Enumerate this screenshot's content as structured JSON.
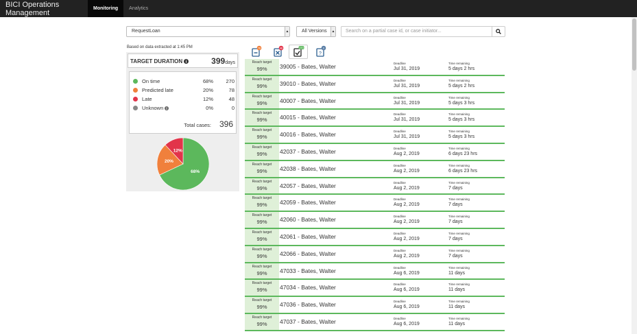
{
  "navbar": {
    "brand": "BICI Operations Management",
    "tabs": [
      {
        "label": "Monitoring",
        "active": true
      },
      {
        "label": "Analytics",
        "active": false
      }
    ]
  },
  "filters": {
    "process": "RequestLoan",
    "version": "All Versions",
    "search_placeholder": "Search on a partial case id, or case initiator..."
  },
  "extracted_note": "Based on data extracted at 1:45 PM",
  "target_duration": {
    "label": "TARGET DURATION",
    "value": "399",
    "unit": "days"
  },
  "stats": [
    {
      "name": "On time",
      "percent": "68%",
      "count": "270",
      "color": "#5cb85c"
    },
    {
      "name": "Predicted late",
      "percent": "20%",
      "count": "78",
      "color": "#f0803c"
    },
    {
      "name": "Late",
      "percent": "12%",
      "count": "48",
      "color": "#e2344a"
    },
    {
      "name": "Unknown",
      "percent": "0%",
      "count": "0",
      "color": "#888888"
    }
  ],
  "total_label": "Total cases:",
  "total_value": "396",
  "chart_data": {
    "type": "pie",
    "categories": [
      "On time",
      "Predicted late",
      "Late"
    ],
    "values": [
      68,
      20,
      12
    ],
    "labels": [
      "68%",
      "20%",
      "12%"
    ],
    "colors": [
      "#5cb85c",
      "#f0803c",
      "#e2344a"
    ]
  },
  "filter_icons": [
    {
      "name": "predicted-late-filter-icon",
      "badge": "78",
      "badge_color": "#f0803c"
    },
    {
      "name": "late-filter-icon",
      "badge": "48",
      "badge_color": "#e2344a"
    },
    {
      "name": "on-time-filter-icon",
      "badge": "270",
      "badge_color": "#5cb85c"
    },
    {
      "name": "unknown-filter-icon",
      "badge": "0",
      "badge_color": "#5b7fa6"
    }
  ],
  "list_labels": {
    "reach": "Reach target",
    "deadline": "Deadline",
    "remaining": "Time remaining"
  },
  "cases": [
    {
      "reach": "99%",
      "title": "39005 - Bates, Walter",
      "deadline": "Jul 31, 2019",
      "remaining": "5 days 2 hrs"
    },
    {
      "reach": "99%",
      "title": "39010 - Bates, Walter",
      "deadline": "Jul 31, 2019",
      "remaining": "5 days 2 hrs"
    },
    {
      "reach": "99%",
      "title": "40007 - Bates, Walter",
      "deadline": "Jul 31, 2019",
      "remaining": "5 days 3 hrs"
    },
    {
      "reach": "99%",
      "title": "40015 - Bates, Walter",
      "deadline": "Jul 31, 2019",
      "remaining": "5 days 3 hrs"
    },
    {
      "reach": "99%",
      "title": "40016 - Bates, Walter",
      "deadline": "Jul 31, 2019",
      "remaining": "5 days 3 hrs"
    },
    {
      "reach": "99%",
      "title": "42037 - Bates, Walter",
      "deadline": "Aug 2, 2019",
      "remaining": "6 days 23 hrs"
    },
    {
      "reach": "99%",
      "title": "42038 - Bates, Walter",
      "deadline": "Aug 2, 2019",
      "remaining": "6 days 23 hrs"
    },
    {
      "reach": "99%",
      "title": "42057 - Bates, Walter",
      "deadline": "Aug 2, 2019",
      "remaining": "7 days"
    },
    {
      "reach": "99%",
      "title": "42059 - Bates, Walter",
      "deadline": "Aug 2, 2019",
      "remaining": "7 days"
    },
    {
      "reach": "99%",
      "title": "42060 - Bates, Walter",
      "deadline": "Aug 2, 2019",
      "remaining": "7 days"
    },
    {
      "reach": "99%",
      "title": "42061 - Bates, Walter",
      "deadline": "Aug 2, 2019",
      "remaining": "7 days"
    },
    {
      "reach": "99%",
      "title": "42066 - Bates, Walter",
      "deadline": "Aug 2, 2019",
      "remaining": "7 days"
    },
    {
      "reach": "99%",
      "title": "47033 - Bates, Walter",
      "deadline": "Aug 6, 2019",
      "remaining": "11 days"
    },
    {
      "reach": "99%",
      "title": "47034 - Bates, Walter",
      "deadline": "Aug 6, 2019",
      "remaining": "11 days"
    },
    {
      "reach": "99%",
      "title": "47036 - Bates, Walter",
      "deadline": "Aug 6, 2019",
      "remaining": "11 days"
    },
    {
      "reach": "99%",
      "title": "47037 - Bates, Walter",
      "deadline": "Aug 6, 2019",
      "remaining": "11 days"
    }
  ]
}
